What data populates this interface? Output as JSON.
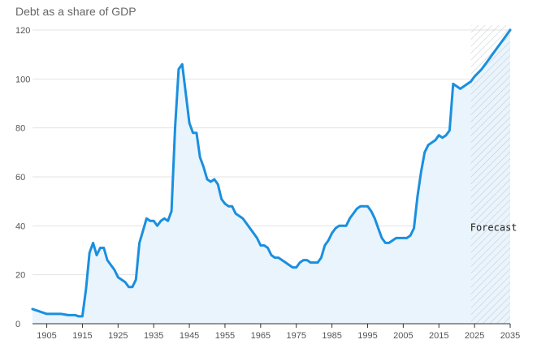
{
  "chart_data": {
    "type": "area",
    "title": "Debt as a share of GDP",
    "xlabel": "",
    "ylabel": "",
    "xlim": [
      1901,
      2035
    ],
    "ylim": [
      0,
      120
    ],
    "xticks": [
      1905,
      1915,
      1925,
      1935,
      1945,
      1955,
      1965,
      1975,
      1985,
      1995,
      2005,
      2015,
      2025,
      2035
    ],
    "yticks": [
      0,
      20,
      40,
      60,
      80,
      100,
      120
    ],
    "grid": "horizontal",
    "line_color": "#1a8fe0",
    "fill_color": "#eaf4fc",
    "forecast": {
      "label": "Forecast",
      "start": 2024,
      "end": 2035,
      "hatch_color": "#bfc6cc"
    },
    "x": [
      1901,
      1903,
      1905,
      1907,
      1909,
      1911,
      1913,
      1914,
      1915,
      1916,
      1917,
      1918,
      1919,
      1920,
      1921,
      1922,
      1923,
      1924,
      1925,
      1926,
      1927,
      1928,
      1929,
      1930,
      1931,
      1932,
      1933,
      1934,
      1935,
      1936,
      1937,
      1938,
      1939,
      1940,
      1941,
      1942,
      1943,
      1944,
      1945,
      1946,
      1947,
      1948,
      1949,
      1950,
      1951,
      1952,
      1953,
      1954,
      1955,
      1956,
      1957,
      1958,
      1959,
      1960,
      1961,
      1962,
      1963,
      1964,
      1965,
      1966,
      1967,
      1968,
      1969,
      1970,
      1971,
      1972,
      1973,
      1974,
      1975,
      1976,
      1977,
      1978,
      1979,
      1980,
      1981,
      1982,
      1983,
      1984,
      1985,
      1986,
      1987,
      1988,
      1989,
      1990,
      1991,
      1992,
      1993,
      1994,
      1995,
      1996,
      1997,
      1998,
      1999,
      2000,
      2001,
      2002,
      2003,
      2004,
      2005,
      2006,
      2007,
      2008,
      2009,
      2010,
      2011,
      2012,
      2013,
      2014,
      2015,
      2016,
      2017,
      2018,
      2019,
      2020,
      2021,
      2022,
      2023,
      2024,
      2025,
      2027,
      2029,
      2031,
      2033,
      2035
    ],
    "values": [
      6,
      5,
      4,
      4,
      4,
      3.5,
      3.5,
      3,
      3,
      14,
      29,
      33,
      28,
      31,
      31,
      26,
      24,
      22,
      19,
      18,
      17,
      15,
      15,
      18,
      33,
      38,
      43,
      42,
      42,
      40,
      42,
      43,
      42,
      46,
      80,
      104,
      106,
      94,
      82,
      78,
      78,
      68,
      64,
      59,
      58,
      59,
      57,
      51,
      49,
      48,
      48,
      45,
      44,
      43,
      41,
      39,
      37,
      35,
      32,
      32,
      31,
      28,
      27,
      27,
      26,
      25,
      24,
      23,
      23,
      25,
      26,
      26,
      25,
      25,
      25,
      27,
      32,
      34,
      37,
      39,
      40,
      40,
      40,
      43,
      45,
      47,
      48,
      48,
      48,
      46,
      43,
      39,
      35,
      33,
      33,
      34,
      35,
      35,
      35,
      35,
      36,
      39,
      52,
      62,
      70,
      73,
      74,
      75,
      77,
      76,
      77,
      79,
      98,
      97,
      96,
      97,
      98,
      99,
      101,
      104,
      108,
      112,
      116,
      120
    ]
  }
}
